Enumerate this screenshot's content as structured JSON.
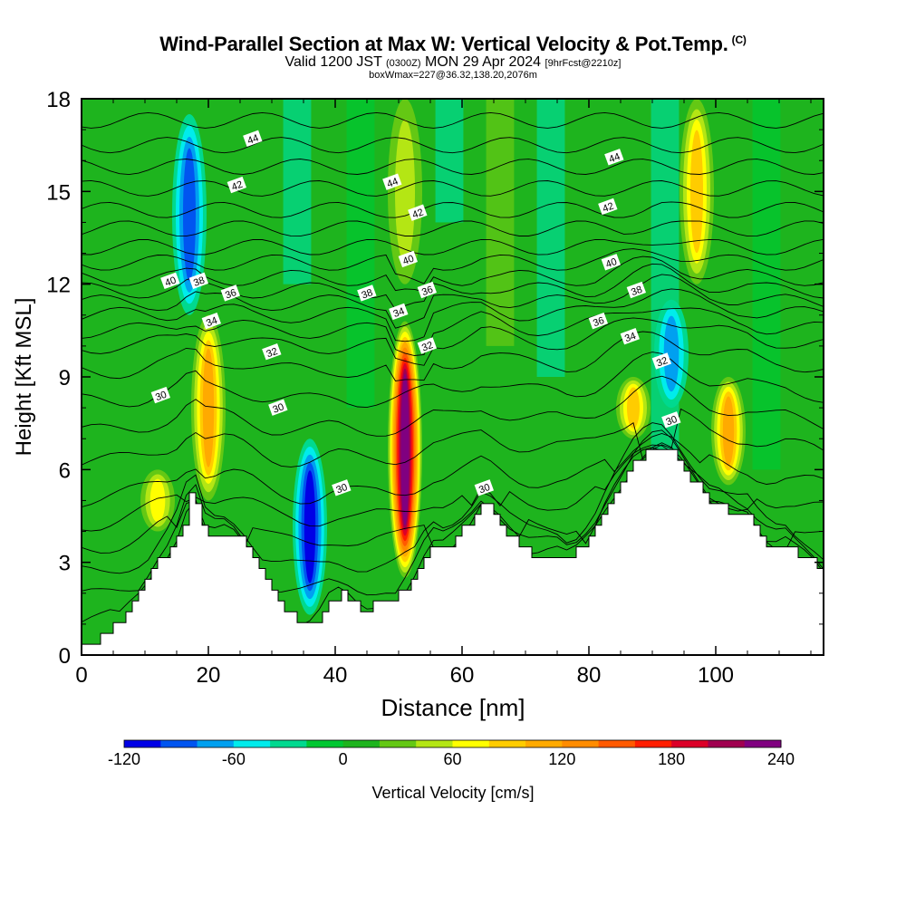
{
  "title": {
    "main": "Wind-Parallel Section at Max W: Vertical Velocity & Pot.Temp.",
    "copyright": "(C)",
    "valid_a": "Valid 1200 JST",
    "valid_b": "(0300Z)",
    "valid_c": "MON 29 Apr 2024",
    "valid_d": "[9hrFcst@2210z]",
    "box": "boxWmax=227@36.32,138.20,2076m"
  },
  "chart_data": {
    "type": "heatmap",
    "xlabel": "Distance [nm]",
    "ylabel": "Height [Kft MSL]",
    "xlim": [
      0,
      117
    ],
    "ylim": [
      0,
      18
    ],
    "x_ticks": [
      "0",
      "20",
      "40",
      "60",
      "80",
      "100"
    ],
    "x_tick_values": [
      0,
      20,
      40,
      60,
      80,
      100
    ],
    "y_ticks": [
      "0",
      "3",
      "6",
      "9",
      "12",
      "15",
      "18"
    ],
    "y_tick_values": [
      0,
      3,
      6,
      9,
      12,
      15,
      18
    ],
    "terrain": {
      "x": [
        0,
        3,
        6,
        9,
        12,
        14,
        16,
        17,
        18,
        19,
        20,
        21,
        23,
        25,
        27,
        29,
        31,
        33,
        35,
        37,
        39,
        41,
        43,
        45,
        47,
        49,
        51,
        53,
        55,
        57,
        59,
        61,
        63,
        65,
        67,
        69,
        71,
        73,
        75,
        77,
        79,
        81,
        83,
        85,
        87,
        89,
        91,
        93,
        95,
        97,
        99,
        101,
        103,
        105,
        107,
        109,
        111,
        113,
        115,
        117
      ],
      "y": [
        0.3,
        0.6,
        1.2,
        2.0,
        3.0,
        3.5,
        4.3,
        5.2,
        5.0,
        4.2,
        3.9,
        3.9,
        4.0,
        3.7,
        3.1,
        2.3,
        1.6,
        1.3,
        1.0,
        1.2,
        1.8,
        2.0,
        1.6,
        1.5,
        1.7,
        1.7,
        2.2,
        2.8,
        3.6,
        3.5,
        3.8,
        4.3,
        4.9,
        4.6,
        4.0,
        3.6,
        3.3,
        3.3,
        3.3,
        3.1,
        3.6,
        4.2,
        5.0,
        5.6,
        6.2,
        6.6,
        6.8,
        6.5,
        6.0,
        5.5,
        5.0,
        4.8,
        4.5,
        4.4,
        3.8,
        3.5,
        3.6,
        3.3,
        3.1,
        2.7
      ]
    },
    "colorbar": {
      "label": "Vertical Velocity [cm/s]",
      "tick_labels": [
        "-120",
        "-60",
        "0",
        "60",
        "120",
        "180",
        "240"
      ],
      "tick_values": [
        -120,
        -60,
        0,
        60,
        120,
        180,
        240
      ],
      "bins": [
        -120,
        -100,
        -80,
        -60,
        -40,
        -20,
        0,
        20,
        40,
        60,
        80,
        100,
        120,
        140,
        160,
        180,
        200,
        220,
        240
      ],
      "colors": [
        "#0000e6",
        "#0055f0",
        "#00a0f0",
        "#00ecec",
        "#00d98f",
        "#00c832",
        "#1eb41e",
        "#64c814",
        "#b4e614",
        "#ffff00",
        "#ffcc00",
        "#ffaa00",
        "#ff8c00",
        "#ff5a00",
        "#ff1e00",
        "#dc0028",
        "#a00050",
        "#800080"
      ]
    },
    "vertical_velocity_features": [
      {
        "x": 17,
        "z_bottom": 11,
        "z_top": 17.5,
        "w": -80
      },
      {
        "x": 20,
        "z_bottom": 5,
        "z_top": 11,
        "w": 100
      },
      {
        "x": 12,
        "z_bottom": 4,
        "z_top": 6,
        "w": 60
      },
      {
        "x": 36,
        "z_bottom": 1.3,
        "z_top": 7,
        "w": -110
      },
      {
        "x": 51,
        "z_bottom": 2.5,
        "z_top": 10.8,
        "w": 227
      },
      {
        "x": 51,
        "z_bottom": 12,
        "z_top": 18,
        "w": 50
      },
      {
        "x": 97,
        "z_bottom": 12,
        "z_top": 18,
        "w": 80
      },
      {
        "x": 102,
        "z_bottom": 5.5,
        "z_top": 9,
        "w": 110
      },
      {
        "x": 93,
        "z_bottom": 8,
        "z_top": 11.5,
        "w": -60
      },
      {
        "x": 87,
        "z_bottom": 7,
        "z_top": 9,
        "w": 80
      }
    ],
    "isentropes": {
      "units": "Potential Temperature",
      "labels": [
        {
          "value": "44",
          "x": 27,
          "z": 16.7
        },
        {
          "value": "44",
          "x": 49,
          "z": 15.3
        },
        {
          "value": "44",
          "x": 84,
          "z": 16.1
        },
        {
          "value": "42",
          "x": 24.5,
          "z": 15.2
        },
        {
          "value": "42",
          "x": 53,
          "z": 14.3
        },
        {
          "value": "42",
          "x": 83,
          "z": 14.5
        },
        {
          "value": "40",
          "x": 14,
          "z": 12.1
        },
        {
          "value": "40",
          "x": 51.5,
          "z": 12.8
        },
        {
          "value": "40",
          "x": 83.5,
          "z": 12.7
        },
        {
          "value": "38",
          "x": 18.5,
          "z": 12.1
        },
        {
          "value": "38",
          "x": 45,
          "z": 11.7
        },
        {
          "value": "38",
          "x": 87.5,
          "z": 11.8
        },
        {
          "value": "36",
          "x": 23.5,
          "z": 11.7
        },
        {
          "value": "36",
          "x": 54.5,
          "z": 11.8
        },
        {
          "value": "36",
          "x": 81.5,
          "z": 10.8
        },
        {
          "value": "34",
          "x": 20.5,
          "z": 10.8
        },
        {
          "value": "34",
          "x": 50,
          "z": 11.1
        },
        {
          "value": "34",
          "x": 86.5,
          "z": 10.3
        },
        {
          "value": "32",
          "x": 30,
          "z": 9.8
        },
        {
          "value": "32",
          "x": 54.5,
          "z": 10.0
        },
        {
          "value": "32",
          "x": 91.5,
          "z": 9.5
        },
        {
          "value": "30",
          "x": 12.5,
          "z": 8.4
        },
        {
          "value": "30",
          "x": 31,
          "z": 8.0
        },
        {
          "value": "30",
          "x": 41,
          "z": 5.4
        },
        {
          "value": "30",
          "x": 63.5,
          "z": 5.4
        },
        {
          "value": "30",
          "x": 93,
          "z": 7.6
        }
      ],
      "levels_z": [
        1.0,
        1.8,
        2.6,
        3.4,
        4.2,
        5.0,
        6.2,
        7.2,
        8.2,
        9.2,
        10.0,
        10.5,
        11.0,
        11.4,
        11.8,
        12.2,
        12.7,
        13.2,
        13.8,
        14.4,
        15.1,
        15.8,
        16.5,
        17.3
      ]
    }
  }
}
